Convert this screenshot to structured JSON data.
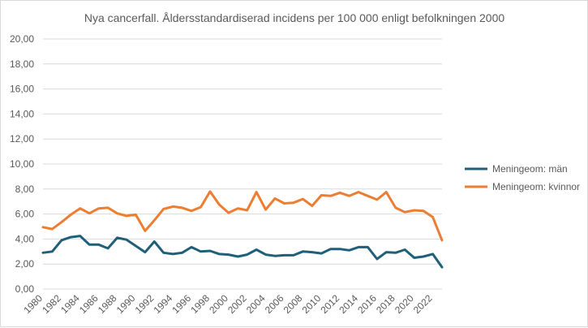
{
  "chart_data": {
    "type": "line",
    "title": "Nya cancerfall. Åldersstandardiserad incidens per 100 000 enligt befolkningen 2000",
    "xlabel": "",
    "ylabel": "",
    "ylim": [
      0,
      20
    ],
    "yticks": [
      "0,00",
      "2,00",
      "4,00",
      "6,00",
      "8,00",
      "10,00",
      "12,00",
      "14,00",
      "16,00",
      "18,00",
      "20,00"
    ],
    "xticks": [
      "1980",
      "1982",
      "1984",
      "1986",
      "1988",
      "1990",
      "1992",
      "1994",
      "1996",
      "1998",
      "2000",
      "2002",
      "2004",
      "2006",
      "2008",
      "2010",
      "2012",
      "2014",
      "2016",
      "2018",
      "2020",
      "2022"
    ],
    "grid": true,
    "legend_position": "right",
    "x": [
      1980,
      1981,
      1982,
      1983,
      1984,
      1985,
      1986,
      1987,
      1988,
      1989,
      1990,
      1991,
      1992,
      1993,
      1994,
      1995,
      1996,
      1997,
      1998,
      1999,
      2000,
      2001,
      2002,
      2003,
      2004,
      2005,
      2006,
      2007,
      2008,
      2009,
      2010,
      2011,
      2012,
      2013,
      2014,
      2015,
      2016,
      2017,
      2018,
      2019,
      2020,
      2021,
      2022,
      2023
    ],
    "series": [
      {
        "name": "Meningeom: män",
        "color": "#1f5f7a",
        "values": [
          2.9,
          3.0,
          3.9,
          4.15,
          4.25,
          3.55,
          3.55,
          3.25,
          4.1,
          3.95,
          3.45,
          2.95,
          3.8,
          2.9,
          2.8,
          2.9,
          3.35,
          3.0,
          3.05,
          2.8,
          2.75,
          2.6,
          2.75,
          3.15,
          2.75,
          2.65,
          2.7,
          2.7,
          3.0,
          2.95,
          2.85,
          3.2,
          3.2,
          3.1,
          3.35,
          3.35,
          2.4,
          2.95,
          2.9,
          3.15,
          2.5,
          2.6,
          2.8,
          1.75
        ]
      },
      {
        "name": "Meningeom: kvinnor",
        "color": "#ed7d31",
        "values": [
          4.95,
          4.8,
          5.35,
          5.95,
          6.45,
          6.05,
          6.45,
          6.5,
          6.05,
          5.85,
          5.95,
          4.65,
          5.5,
          6.4,
          6.6,
          6.5,
          6.25,
          6.55,
          7.8,
          6.75,
          6.1,
          6.45,
          6.3,
          7.75,
          6.35,
          7.25,
          6.85,
          6.9,
          7.2,
          6.65,
          7.5,
          7.45,
          7.7,
          7.45,
          7.75,
          7.45,
          7.15,
          7.75,
          6.5,
          6.15,
          6.3,
          6.25,
          5.75,
          3.9
        ]
      }
    ]
  }
}
